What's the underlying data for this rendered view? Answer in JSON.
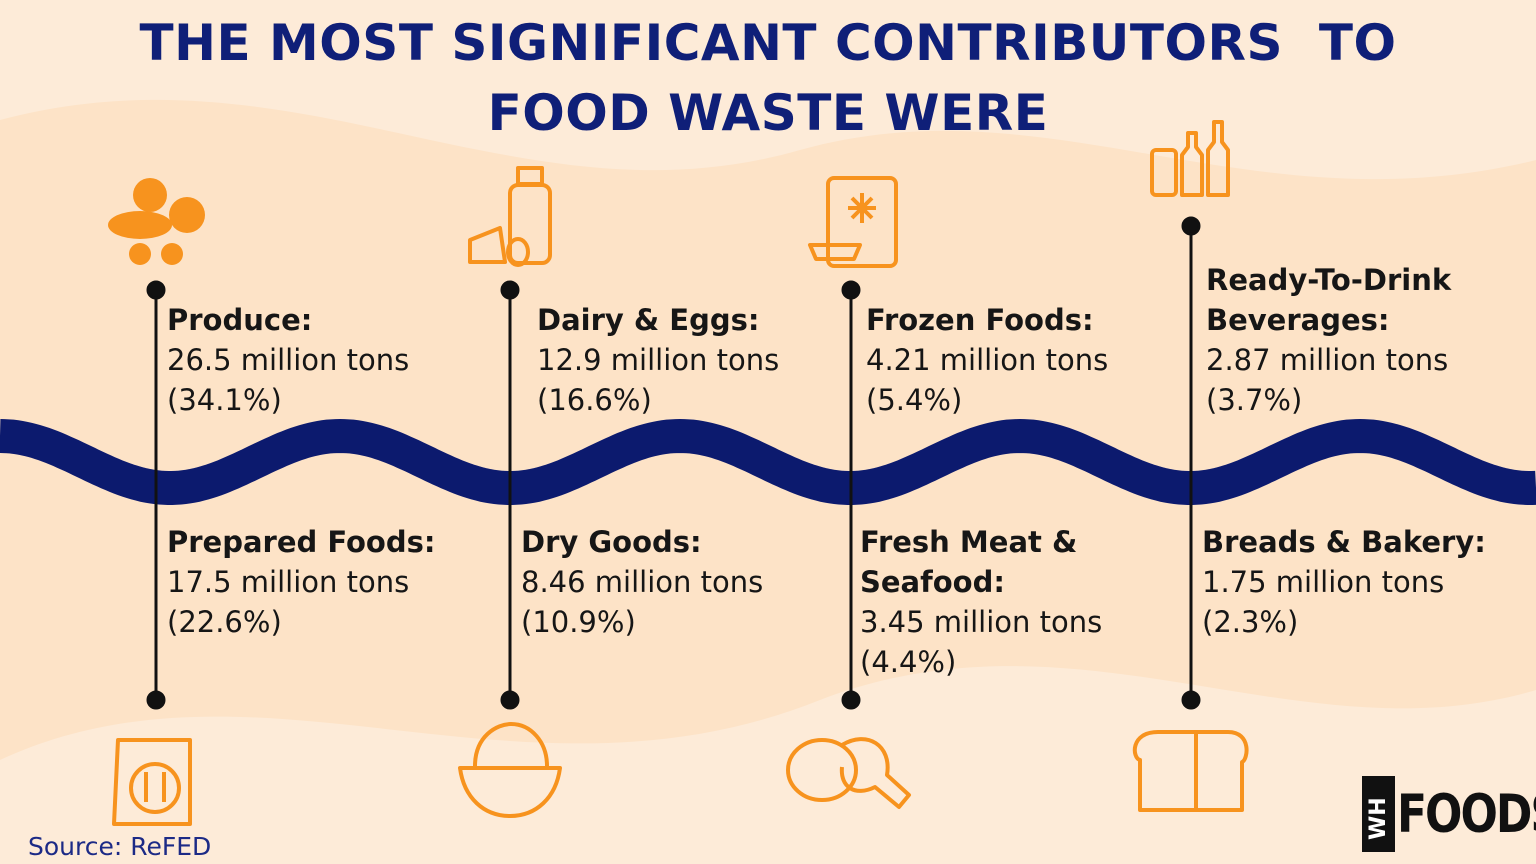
{
  "header": {
    "title_lines": [
      "THE MOST SIGNIFICANT CONTRIBUTORS  TO",
      "FOOD WASTE WERE"
    ]
  },
  "items": [
    {
      "label": "Produce:",
      "amount": "26.5 million tons",
      "share": "(34.1%)"
    },
    {
      "label": "Dairy & Eggs:",
      "amount": "12.9 million tons",
      "share": "(16.6%)"
    },
    {
      "label": "Frozen Foods:",
      "amount": "4.21 million tons",
      "share": "(5.4%)"
    },
    {
      "label": "Ready-To-Drink Beverages:",
      "amount": "2.87 million tons",
      "share": "(3.7%)"
    },
    {
      "label": "Prepared Foods:",
      "amount": "17.5 million tons",
      "share": "(22.6%)"
    },
    {
      "label": "Dry Goods:",
      "amount": "8.46 million tons",
      "share": "(10.9%)"
    },
    {
      "label": "Fresh Meat & Seafood:",
      "amount": "3.45 million tons",
      "share": "(4.4%)"
    },
    {
      "label": "Breads & Bakery:",
      "amount": "1.75 million tons",
      "share": "(2.3%)"
    }
  ],
  "footer": {
    "source": "Source: ReFED",
    "logo_mark": "WH",
    "logo_text": "FOODS"
  }
}
